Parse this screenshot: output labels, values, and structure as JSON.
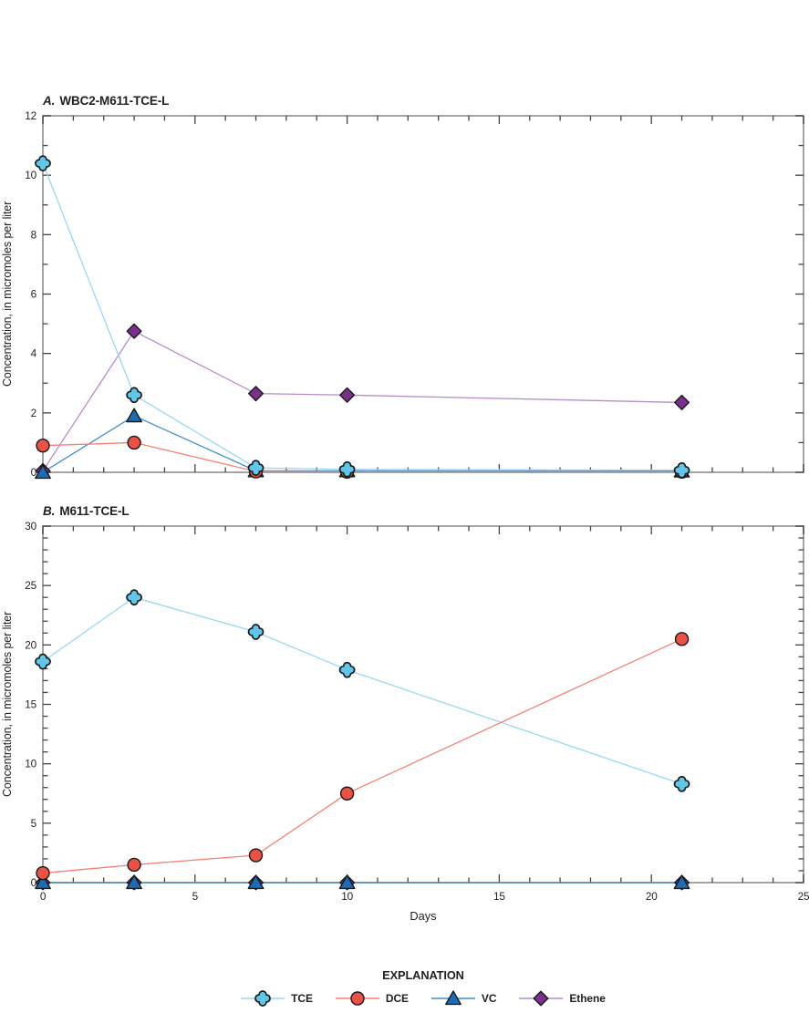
{
  "chart_data": [
    {
      "panel": "A",
      "type": "line",
      "title_prefix": "A.",
      "title": "WBC2-M611-TCE-L",
      "ylabel": "Concentration, in micromoles per liter",
      "xlabel": "",
      "xlim": [
        0,
        25
      ],
      "ylim": [
        0,
        12
      ],
      "xticks": {
        "major": 5,
        "minor": 1
      },
      "yticks": {
        "major": 2,
        "minor": 1
      },
      "show_x_tick_labels": false,
      "grid": false,
      "x": [
        0,
        3,
        7,
        10,
        21
      ],
      "series": [
        {
          "name": "TCE",
          "values": [
            10.4,
            2.6,
            0.15,
            0.1,
            0.07
          ]
        },
        {
          "name": "DCE",
          "values": [
            0.9,
            1.0,
            0.03,
            0.02,
            0.02
          ]
        },
        {
          "name": "VC",
          "values": [
            0.0,
            1.9,
            0.05,
            0.05,
            0.04
          ]
        },
        {
          "name": "Ethene",
          "values": [
            0.05,
            4.75,
            2.65,
            2.6,
            2.35
          ]
        }
      ]
    },
    {
      "panel": "B",
      "type": "line",
      "title_prefix": "B.",
      "title": "M611-TCE-L",
      "ylabel": "Concentration, in micromoles per liter",
      "xlabel": "Days",
      "xlim": [
        0,
        25
      ],
      "ylim": [
        0,
        30
      ],
      "xticks": {
        "major": 5,
        "minor": 1
      },
      "yticks": {
        "major": 5,
        "minor": 1
      },
      "show_x_tick_labels": true,
      "grid": false,
      "x": [
        0,
        3,
        7,
        10,
        21
      ],
      "series": [
        {
          "name": "TCE",
          "values": [
            18.6,
            24.0,
            21.1,
            17.9,
            8.3
          ]
        },
        {
          "name": "DCE",
          "values": [
            0.8,
            1.5,
            2.3,
            7.5,
            20.5
          ]
        },
        {
          "name": "VC",
          "values": [
            0.0,
            0.0,
            0.0,
            0.0,
            0.0
          ]
        },
        {
          "name": "Ethene",
          "values": [
            0.0,
            0.0,
            0.0,
            0.0,
            0.0
          ]
        }
      ]
    }
  ],
  "legend": {
    "title": "EXPLANATION",
    "position": "bottom",
    "items": [
      {
        "label": "TCE",
        "marker": "cross",
        "fill": "#62C6EA",
        "line": "#9AD8F2"
      },
      {
        "label": "DCE",
        "marker": "circle",
        "fill": "#EA5245",
        "line": "#F48174"
      },
      {
        "label": "VC",
        "marker": "triangle",
        "fill": "#1B6CB4",
        "line": "#3D8FC8"
      },
      {
        "label": "Ethene",
        "marker": "diamond",
        "fill": "#7B2F8E",
        "line": "#B98BCB"
      }
    ]
  },
  "style_colors": {
    "frame": "#9A9A9A",
    "tick": "#444444",
    "text": "#231f20",
    "marker_outline": "#1A1A1A"
  }
}
